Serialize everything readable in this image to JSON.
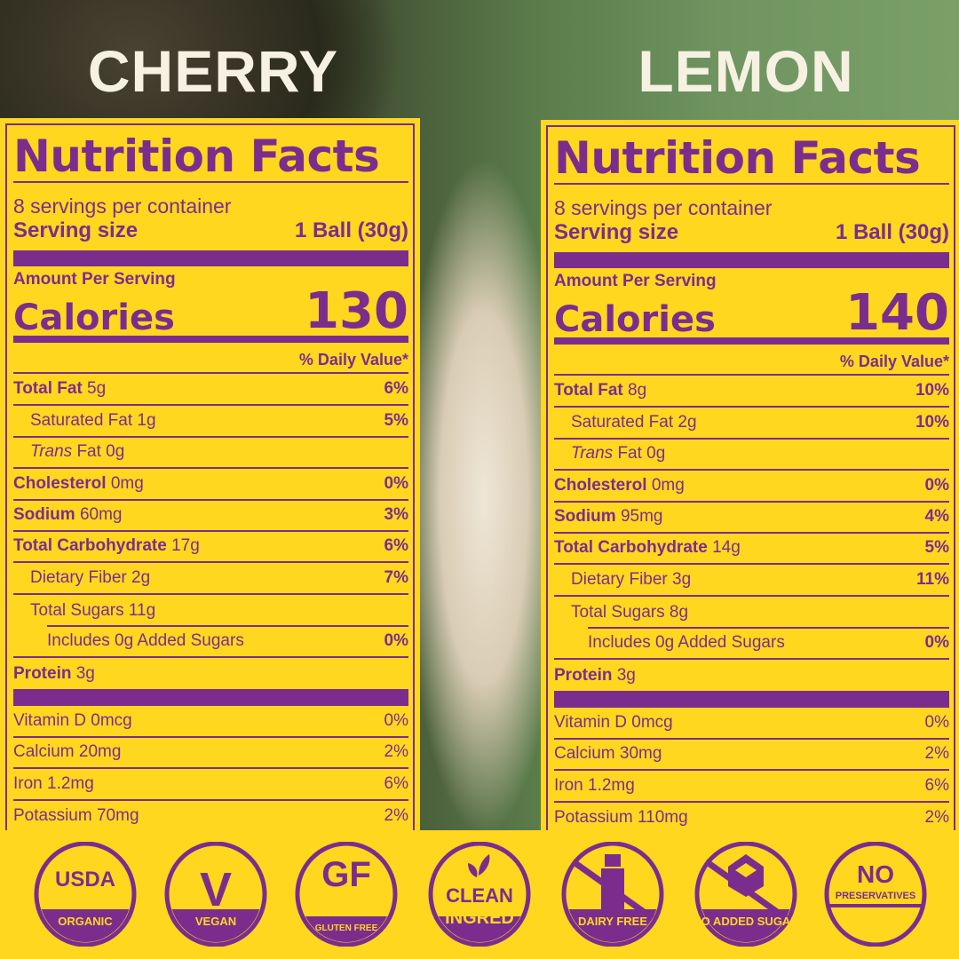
{
  "colors": {
    "panel": "#FFD71F",
    "ink": "#7B2D8E",
    "flavor_text": "#F6F1E3"
  },
  "panels": [
    {
      "flavor": "CHERRY",
      "title": "Nutrition Facts",
      "servings": "8 servings per container",
      "serving_size_label": "Serving size",
      "serving_size": "1 Ball (30g)",
      "amount_per_serving": "Amount Per Serving",
      "calories_label": "Calories",
      "calories": "130",
      "dv_header": "% Daily Value*",
      "rows": [
        {
          "name": "Total Fat",
          "amount": "5g",
          "dv": "6%"
        },
        {
          "name": "Saturated Fat 1g",
          "dv": "5%",
          "indent": 1,
          "plain": true
        },
        {
          "name": "Trans",
          "amount": "Fat 0g",
          "indent": 1,
          "italic": true
        },
        {
          "name": "Cholesterol",
          "amount": "0mg",
          "dv": "0%"
        },
        {
          "name": "Sodium",
          "amount": "60mg",
          "dv": "3%"
        },
        {
          "name": "Total Carbohydrate",
          "amount": "17g",
          "dv": "6%"
        },
        {
          "name": "Dietary Fiber 2g",
          "dv": "7%",
          "indent": 1,
          "plain": true
        },
        {
          "name": "Total Sugars 11g",
          "indent": 1,
          "plain": true
        },
        {
          "name": "Includes 0g Added Sugars",
          "dv": "0%",
          "indent": 2,
          "plain": true
        },
        {
          "name": "Protein",
          "amount": "3g"
        }
      ],
      "vitamins": [
        {
          "name": "Vitamin D 0mcg",
          "dv": "0%"
        },
        {
          "name": "Calcium 20mg",
          "dv": "2%"
        },
        {
          "name": "Iron 1.2mg",
          "dv": "6%"
        },
        {
          "name": "Potassium 70mg",
          "dv": "2%"
        }
      ]
    },
    {
      "flavor": "LEMON",
      "title": "Nutrition Facts",
      "servings": "8 servings per container",
      "serving_size_label": "Serving size",
      "serving_size": "1 Ball (30g)",
      "amount_per_serving": "Amount Per Serving",
      "calories_label": "Calories",
      "calories": "140",
      "dv_header": "% Daily Value*",
      "rows": [
        {
          "name": "Total Fat",
          "amount": "8g",
          "dv": "10%"
        },
        {
          "name": "Saturated Fat 2g",
          "dv": "10%",
          "indent": 1,
          "plain": true
        },
        {
          "name": "Trans",
          "amount": "Fat 0g",
          "indent": 1,
          "italic": true
        },
        {
          "name": "Cholesterol",
          "amount": "0mg",
          "dv": "0%"
        },
        {
          "name": "Sodium",
          "amount": "95mg",
          "dv": "4%"
        },
        {
          "name": "Total Carbohydrate",
          "amount": "14g",
          "dv": "5%"
        },
        {
          "name": "Dietary Fiber 3g",
          "dv": "11%",
          "indent": 1,
          "plain": true
        },
        {
          "name": "Total Sugars 8g",
          "indent": 1,
          "plain": true
        },
        {
          "name": "Includes 0g Added Sugars",
          "dv": "0%",
          "indent": 2,
          "plain": true
        },
        {
          "name": "Protein",
          "amount": "3g"
        }
      ],
      "vitamins": [
        {
          "name": "Vitamin D 0mcg",
          "dv": "0%"
        },
        {
          "name": "Calcium 30mg",
          "dv": "2%"
        },
        {
          "name": "Iron 1.2mg",
          "dv": "6%"
        },
        {
          "name": "Potassium 110mg",
          "dv": "2%"
        }
      ]
    }
  ],
  "badges": [
    {
      "icon": "usda-organic-icon",
      "top": "USDA",
      "bottom": "ORGANIC"
    },
    {
      "icon": "vegan-icon",
      "top": "V",
      "bottom": "VEGAN"
    },
    {
      "icon": "gluten-free-icon",
      "top": "GF",
      "bottom": "GLUTEN FREE"
    },
    {
      "icon": "clean-ingredients-icon",
      "top": "CLEAN",
      "bottom": "INGRED"
    },
    {
      "icon": "dairy-free-icon",
      "top": "",
      "bottom": "DAIRY FREE"
    },
    {
      "icon": "no-added-sugar-icon",
      "top": "",
      "bottom": "NO ADDED SUGAR"
    },
    {
      "icon": "no-preservatives-icon",
      "top": "NO",
      "bottom": "PRESERVATIVES"
    }
  ]
}
